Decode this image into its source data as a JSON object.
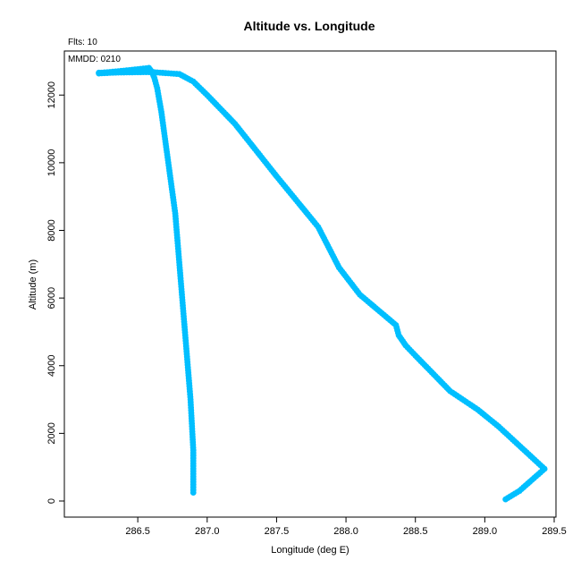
{
  "chart_data": {
    "type": "scatter",
    "title": "Altitude vs. Longitude",
    "annotations": [
      "Flts: 10",
      "MMDD: 0210"
    ],
    "xlabel": "Longitude (deg E)",
    "ylabel": "Altitude (m)",
    "xlim": [
      286.0,
      289.5
    ],
    "ylim": [
      0,
      12800
    ],
    "xticks": [
      "286.5",
      "287.0",
      "287.5",
      "288.0",
      "288.5",
      "289.0",
      "289.5"
    ],
    "yticks": [
      "0",
      "2000",
      "4000",
      "6000",
      "8000",
      "10000",
      "12000"
    ],
    "grid": false,
    "point_color": "#00BFFF",
    "series": [
      {
        "path": [
          [
            286.9,
            250
          ],
          [
            286.9,
            800
          ],
          [
            286.9,
            1500
          ],
          [
            286.88,
            3000
          ],
          [
            286.85,
            4500
          ],
          [
            286.81,
            6500
          ],
          [
            286.77,
            8500
          ],
          [
            286.72,
            10000
          ],
          [
            286.67,
            11500
          ],
          [
            286.64,
            12200
          ],
          [
            286.62,
            12500
          ],
          [
            286.6,
            12700
          ],
          [
            286.58,
            12800
          ]
        ]
      },
      {
        "path": [
          [
            286.22,
            12650
          ],
          [
            286.4,
            12720
          ],
          [
            286.58,
            12800
          ],
          [
            286.58,
            12700
          ],
          [
            286.4,
            12680
          ],
          [
            286.22,
            12640
          ]
        ]
      },
      {
        "path": [
          [
            286.22,
            12660
          ],
          [
            286.4,
            12670
          ],
          [
            286.6,
            12680
          ],
          [
            286.8,
            12620
          ],
          [
            286.9,
            12400
          ],
          [
            287.0,
            12000
          ],
          [
            287.2,
            11150
          ],
          [
            287.5,
            9600
          ],
          [
            287.8,
            8100
          ],
          [
            287.95,
            6900
          ],
          [
            288.1,
            6100
          ],
          [
            288.36,
            5200
          ],
          [
            288.38,
            4900
          ],
          [
            288.43,
            4600
          ],
          [
            288.5,
            4300
          ],
          [
            288.75,
            3250
          ],
          [
            288.95,
            2700
          ],
          [
            289.1,
            2200
          ],
          [
            289.43,
            950
          ],
          [
            289.25,
            300
          ],
          [
            289.15,
            50
          ]
        ]
      }
    ]
  }
}
